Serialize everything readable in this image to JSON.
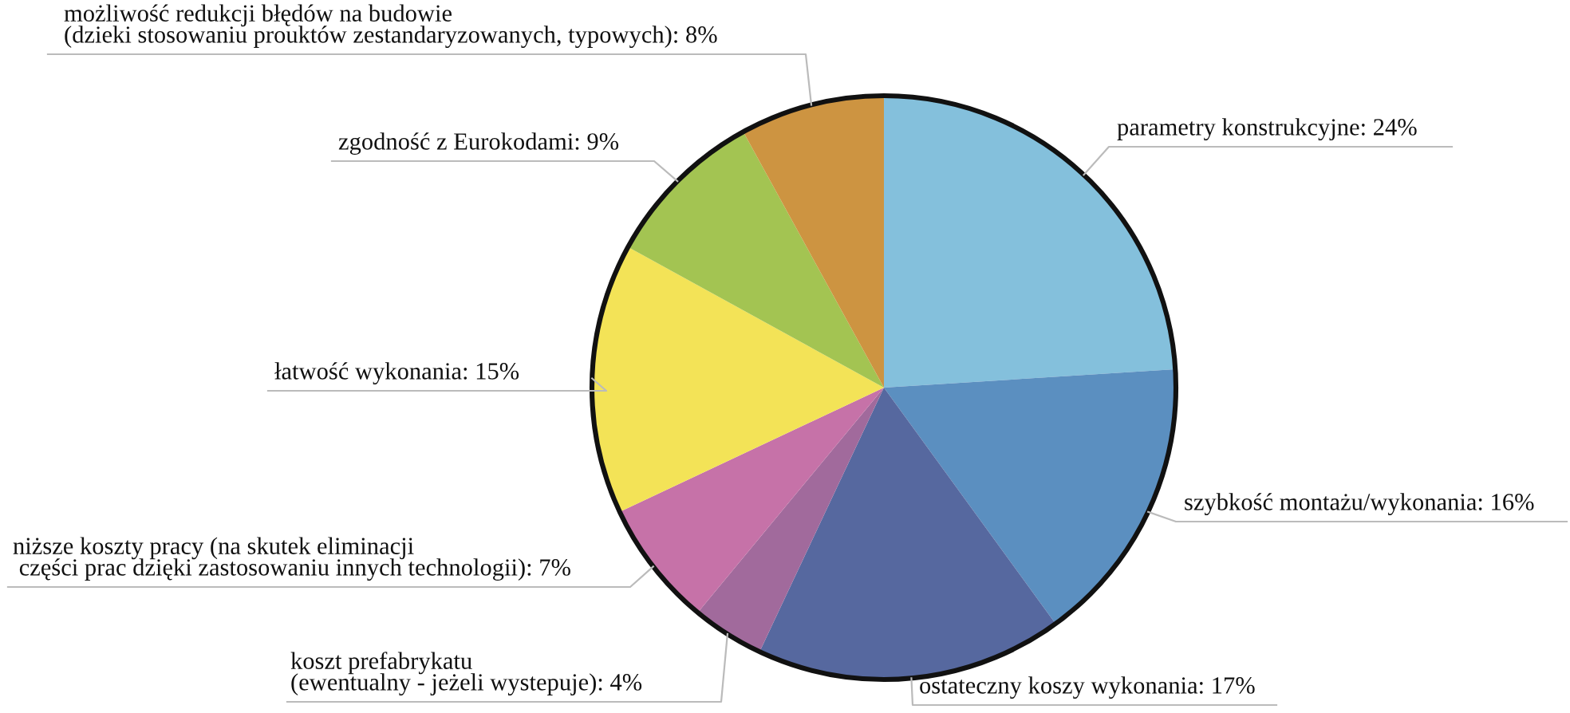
{
  "chart_data": {
    "type": "pie",
    "categories": [
      "parametry konstrukcyjne",
      "szybkość montażu/wykonania",
      "ostateczny koszy wykonania",
      "koszt prefabrykatu\n(ewentualny - jeżeli wystepuje)",
      "niższe koszty pracy (na skutek eliminacji\n części prac dzięki zastosowaniu innych technologii)",
      "łatwość wykonania",
      "zgodność z Eurokodami",
      "możliwość redukcji błędów na budowie\n(dzieki stosowaniu prouktów zestandaryzowanych, typowych)"
    ],
    "values": [
      24,
      16,
      17,
      4,
      7,
      15,
      9,
      8
    ],
    "value_labels": [
      "24%",
      "16%",
      "17%",
      "4%",
      "7%",
      "15%",
      "9%",
      "8%"
    ],
    "colors": [
      "#84c0dc",
      "#5b8fc0",
      "#56689f",
      "#a16a9c",
      "#c672a8",
      "#f3e357",
      "#a3c452",
      "#cd9441"
    ],
    "legend": false
  }
}
